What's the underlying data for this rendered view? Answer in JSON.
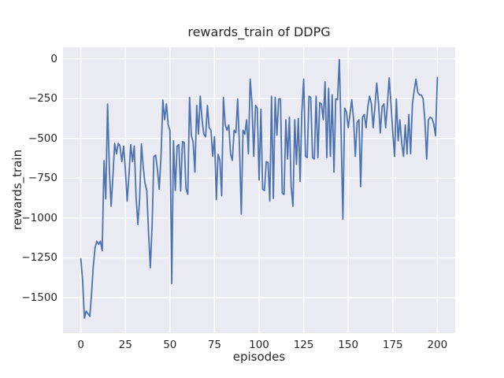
{
  "figure": {
    "background": "#ffffff",
    "plot_background": "#eaeaf2",
    "grid_color": "#ffffff",
    "text_color": "#262626"
  },
  "chart_data": {
    "type": "line",
    "title": "rewards_train of DDPG",
    "xlabel": "episodes",
    "ylabel": "rewards_train",
    "xlim": [
      -10,
      210
    ],
    "ylim": [
      -1722,
      72
    ],
    "grid": true,
    "legend": false,
    "xticks": {
      "values": [
        0,
        25,
        50,
        75,
        100,
        125,
        150,
        175,
        200
      ],
      "labels": [
        "0",
        "25",
        "50",
        "75",
        "100",
        "125",
        "150",
        "175",
        "200"
      ]
    },
    "yticks": {
      "values": [
        0,
        -250,
        -500,
        -750,
        -1000,
        -1250,
        -1500
      ],
      "labels": [
        "0",
        "−250",
        "−500",
        "−750",
        "−1000",
        "−1250",
        "−1500"
      ]
    },
    "series": [
      {
        "name": "rewards_train of DDPG",
        "color": "#4c72b0",
        "line_width": 1.8,
        "x_start": 0,
        "x_step": 1,
        "values": [
          -1255,
          -1390,
          -1628,
          -1584,
          -1600,
          -1617,
          -1480,
          -1300,
          -1185,
          -1145,
          -1165,
          -1145,
          -1205,
          -640,
          -880,
          -285,
          -700,
          -926,
          -737,
          -531,
          -597,
          -531,
          -548,
          -646,
          -548,
          -696,
          -893,
          -729,
          -539,
          -646,
          -548,
          -868,
          -1041,
          -880,
          -535,
          -680,
          -781,
          -827,
          -1100,
          -1312,
          -1041,
          -613,
          -605,
          -700,
          -819,
          -610,
          -260,
          -383,
          -284,
          -416,
          -449,
          -1411,
          -515,
          -827,
          -548,
          -539,
          -830,
          -520,
          -525,
          -815,
          -850,
          -243,
          -482,
          -523,
          -712,
          -293,
          -474,
          -235,
          -383,
          -474,
          -490,
          -293,
          -433,
          -449,
          -613,
          -490,
          -885,
          -600,
          -638,
          -860,
          -243,
          -416,
          -449,
          -416,
          -597,
          -638,
          -449,
          -465,
          -252,
          -548,
          -975,
          -449,
          -474,
          -383,
          -597,
          -128,
          -276,
          -613,
          -293,
          -310,
          -761,
          -317,
          -819,
          -827,
          -646,
          -650,
          -893,
          -235,
          -877,
          -243,
          -480,
          -252,
          -252,
          -844,
          -852,
          -383,
          -630,
          -367,
          -803,
          -926,
          -383,
          -663,
          -375,
          -770,
          -334,
          -128,
          -613,
          -621,
          -235,
          -243,
          -621,
          -630,
          -235,
          -621,
          -276,
          -284,
          -383,
          -145,
          -621,
          -186,
          -613,
          -227,
          -712,
          -252,
          -257,
          -5,
          -449,
          -1008,
          -309,
          -334,
          -433,
          -350,
          -257,
          -383,
          -613,
          -400,
          -383,
          -803,
          -367,
          -350,
          -433,
          -301,
          -235,
          -284,
          -433,
          -301,
          -153,
          -284,
          -465,
          -301,
          -284,
          -433,
          -284,
          -120,
          -284,
          -465,
          -613,
          -252,
          -515,
          -383,
          -531,
          -613,
          -416,
          -597,
          -350,
          -597,
          -284,
          -202,
          -128,
          -211,
          -227,
          -227,
          -252,
          -383,
          -630,
          -383,
          -367,
          -375,
          -410,
          -483,
          -118
        ]
      }
    ]
  }
}
